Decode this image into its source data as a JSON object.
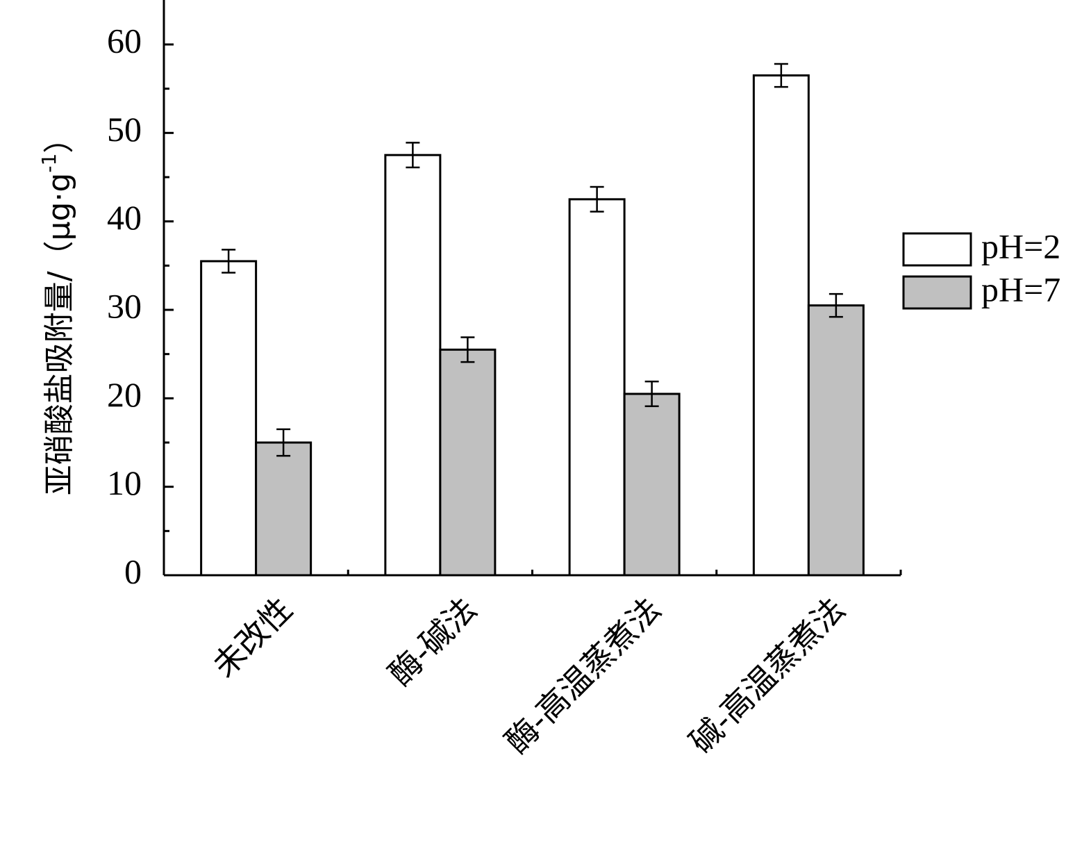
{
  "chart_data": {
    "type": "bar",
    "title": "",
    "xlabel": "",
    "ylabel": "亚硝酸盐吸附量/（μg·g-1）",
    "ylabel_main": "亚硝酸盐吸附量/（μg·g",
    "ylabel_sup": "-1",
    "ylabel_close": "）",
    "ylim": [
      0,
      65
    ],
    "yticks": [
      0,
      10,
      20,
      30,
      40,
      50,
      60
    ],
    "ytick_labels": [
      "0",
      "10",
      "20",
      "30",
      "40",
      "50",
      "60"
    ],
    "categories": [
      "未改性",
      "酶-碱法",
      "酶-高温蒸煮法",
      "碱-高温蒸煮法"
    ],
    "series": [
      {
        "name": "pH=2",
        "color": "#ffffff",
        "values": [
          35.5,
          47.5,
          42.5,
          56.5
        ],
        "errors": [
          1.3,
          1.4,
          1.4,
          1.3
        ]
      },
      {
        "name": "pH=7",
        "color": "#c0c0c0",
        "values": [
          15.0,
          25.5,
          20.5,
          30.5
        ],
        "errors": [
          1.5,
          1.4,
          1.4,
          1.3
        ]
      }
    ],
    "grid": false,
    "legend_position": "right"
  }
}
